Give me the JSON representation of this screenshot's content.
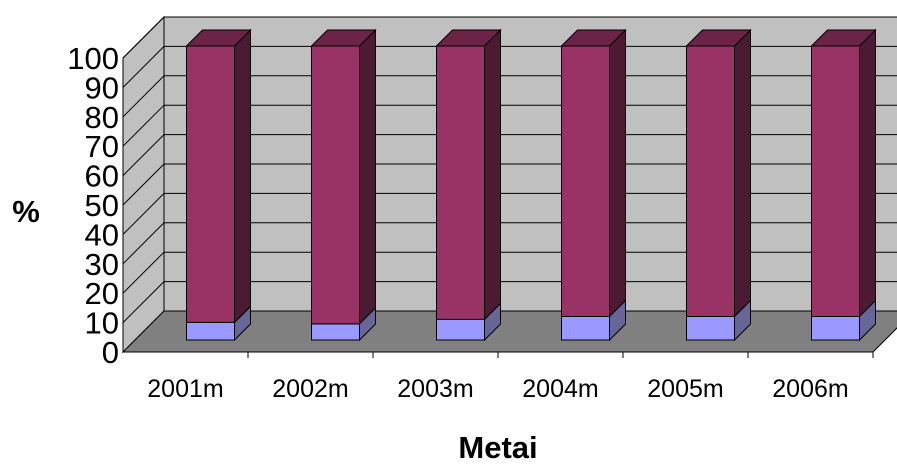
{
  "chart_data": {
    "type": "bar",
    "stacked": true,
    "three_d": true,
    "categories": [
      "2001m",
      "2002m",
      "2003m",
      "2004m",
      "2005m",
      "2006m"
    ],
    "series": [
      {
        "values": [
          6,
          5.5,
          7,
          8,
          8,
          8
        ]
      },
      {
        "values": [
          94,
          94.5,
          93,
          92,
          92,
          92
        ]
      }
    ],
    "ylabel": "%",
    "xlabel": "Metai",
    "ylim": [
      0,
      100
    ],
    "yticks": [
      0,
      10,
      20,
      30,
      40,
      50,
      60,
      70,
      80,
      90,
      100
    ],
    "grid": true,
    "colors": {
      "series_1_front": "#9999ff",
      "series_1_side": "#666699",
      "series_2_front": "#993366",
      "series_2_side": "#4d1a33",
      "series_2_top": "#6b2447",
      "wall": "#c0c0c0",
      "floor": "#808080",
      "gridline": "#000000"
    }
  }
}
